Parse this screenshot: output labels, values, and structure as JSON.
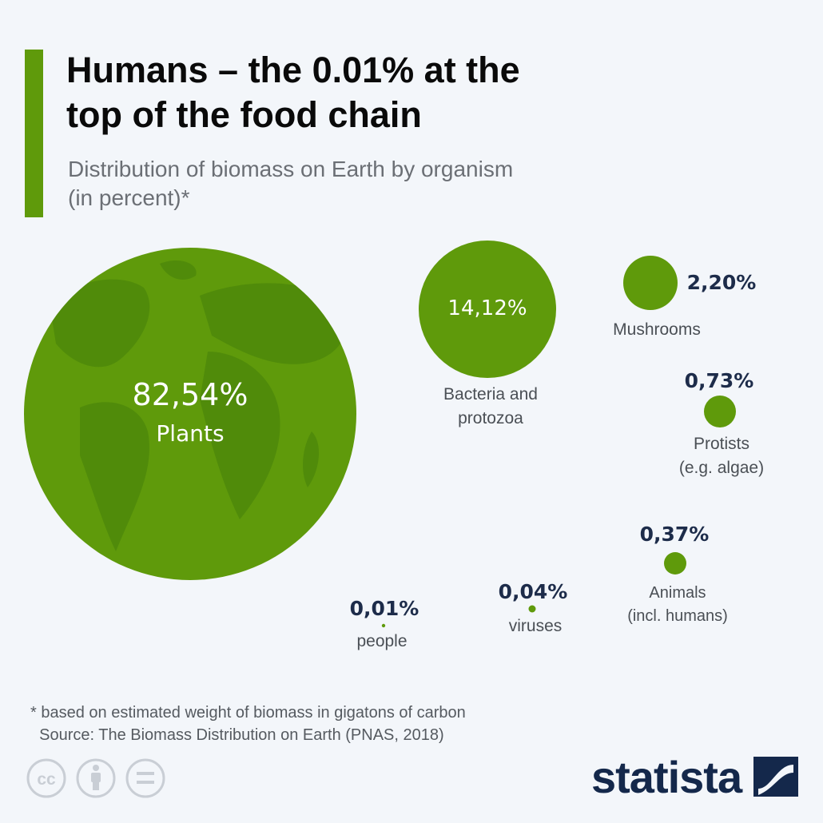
{
  "header": {
    "title_line1": "Humans – the 0.01% at the",
    "title_line2": "top of the food chain",
    "subtitle_line1": "Distribution of biomass on Earth by organism",
    "subtitle_line2": "(in percent)*"
  },
  "chart_data": {
    "type": "bubble",
    "title": "Humans – the 0.01% at the top of the food chain",
    "subtitle": "Distribution of biomass on Earth by organism (in percent)*",
    "unit": "percent",
    "series": [
      {
        "name": "Plants",
        "value": 82.54,
        "value_label": "82,54%",
        "label_lines": [
          "Plants"
        ]
      },
      {
        "name": "Bacteria and protozoa",
        "value": 14.12,
        "value_label": "14,12%",
        "label_lines": [
          "Bacteria and",
          "protozoa"
        ]
      },
      {
        "name": "Mushrooms",
        "value": 2.2,
        "value_label": "2,20%",
        "label_lines": [
          "Mushrooms"
        ]
      },
      {
        "name": "Protists (e.g. algae)",
        "value": 0.73,
        "value_label": "0,73%",
        "label_lines": [
          "Protists",
          "(e.g. algae)"
        ]
      },
      {
        "name": "Animals (incl. humans)",
        "value": 0.37,
        "value_label": "0,37%",
        "label_lines": [
          "Animals",
          "(incl. humans)"
        ]
      },
      {
        "name": "viruses",
        "value": 0.04,
        "value_label": "0,04%",
        "label_lines": [
          "viruses"
        ]
      },
      {
        "name": "people",
        "value": 0.01,
        "value_label": "0,01%",
        "label_lines": [
          "people"
        ]
      }
    ]
  },
  "colors": {
    "accent": "#5f9a0b",
    "bubble": "#5f9a0b",
    "globe_land": "#4f8a0a",
    "value_text": "#1d2c4a",
    "label_text": "#4a4f55",
    "background": "#f3f6fa",
    "brand": "#14284b"
  },
  "footer": {
    "note": "* based on estimated weight of biomass in gigatons of carbon",
    "source": "  Source: The Biomass Distribution on Earth (PNAS, 2018)",
    "brand": "statista",
    "license_icons": [
      "cc-icon",
      "attribution-icon",
      "no-derivatives-icon"
    ]
  }
}
